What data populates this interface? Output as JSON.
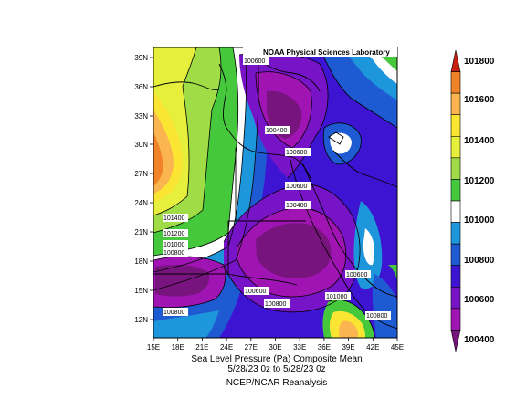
{
  "attribution": "NOAA Physical Sciences Laboratory",
  "map": {
    "lon_ticks": [
      "15E",
      "18E",
      "21E",
      "24E",
      "27E",
      "30E",
      "33E",
      "36E",
      "39E",
      "42E",
      "45E"
    ],
    "lat_ticks": [
      "39N",
      "36N",
      "33N",
      "30N",
      "27N",
      "24N",
      "21N",
      "18N",
      "15N",
      "12N"
    ]
  },
  "contour_labels": {
    "l1": "100600",
    "l2": "100400",
    "l3": "100600",
    "l4": "100600",
    "l5": "100400",
    "l6": "101400",
    "l7": "101200",
    "l8": "101000",
    "l9": "100800",
    "l10": "100800",
    "l11": "100600",
    "l12": "100800",
    "l13": "101000",
    "l14": "100600",
    "l15": "100800"
  },
  "colorbar": {
    "labels": [
      "101800",
      "101600",
      "101400",
      "101200",
      "101000",
      "100800",
      "100600",
      "100400"
    ],
    "colors": [
      "#c81e14",
      "#f08228",
      "#fab450",
      "#fae632",
      "#e6f03c",
      "#a0dc46",
      "#46c83c",
      "#ffffff",
      "#1e96dc",
      "#1e5ad2",
      "#3c14d2",
      "#7814c8",
      "#a014b4",
      "#78147e"
    ]
  },
  "caption": {
    "line1": "Sea Level Pressure (Pa)   Composite Mean",
    "line2": "5/28/23 0z  to 5/28/23 0z",
    "line3": "NCEP/NCAR Reanalysis"
  }
}
